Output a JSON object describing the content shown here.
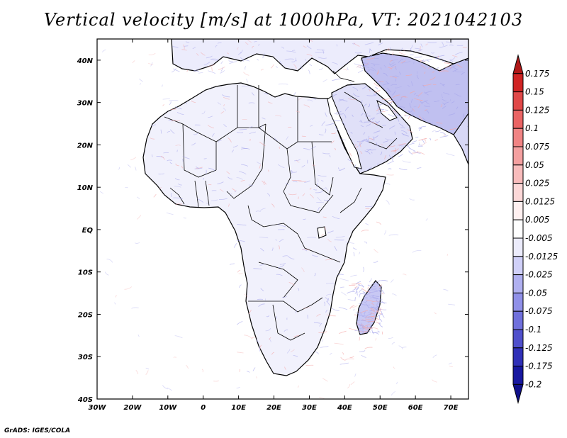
{
  "title": "Vertical velocity [m/s] at 1000hPa, VT: 2021042103",
  "credit": "GrADS: IGES/COLA",
  "map": {
    "region": "Africa and Middle East",
    "lon_range": [
      -30,
      75
    ],
    "lat_range": [
      -40,
      45
    ],
    "lat_ticks": [
      "40N",
      "30N",
      "20N",
      "10N",
      "EQ",
      "10S",
      "20S",
      "30S",
      "40S"
    ],
    "lon_ticks": [
      "30W",
      "20W",
      "10W",
      "0",
      "10E",
      "20E",
      "30E",
      "40E",
      "50E",
      "60E",
      "70E"
    ]
  },
  "colorbar": {
    "levels": [
      "0.175",
      "0.15",
      "0.125",
      "0.1",
      "0.075",
      "0.05",
      "0.025",
      "0.0125",
      "0.005",
      "-0.005",
      "-0.0125",
      "-0.025",
      "-0.05",
      "-0.075",
      "-0.1",
      "-0.125",
      "-0.175",
      "-0.2"
    ],
    "colors": [
      "#b01818",
      "#d02424",
      "#e04848",
      "#ea6464",
      "#f08484",
      "#f4a0a0",
      "#f8bcbc",
      "#fcd8d8",
      "#fff0f0",
      "#ffffff",
      "#ececfc",
      "#d0d0f8",
      "#b0b0f0",
      "#9090e8",
      "#7070dc",
      "#5050cc",
      "#3030b8",
      "#1818a0",
      "#10108a"
    ]
  },
  "colors": {
    "land_field": "#c8c8f4",
    "coast": "#000000",
    "updraft": "#f4a8a8",
    "downdraft": "#a8a8ec"
  }
}
